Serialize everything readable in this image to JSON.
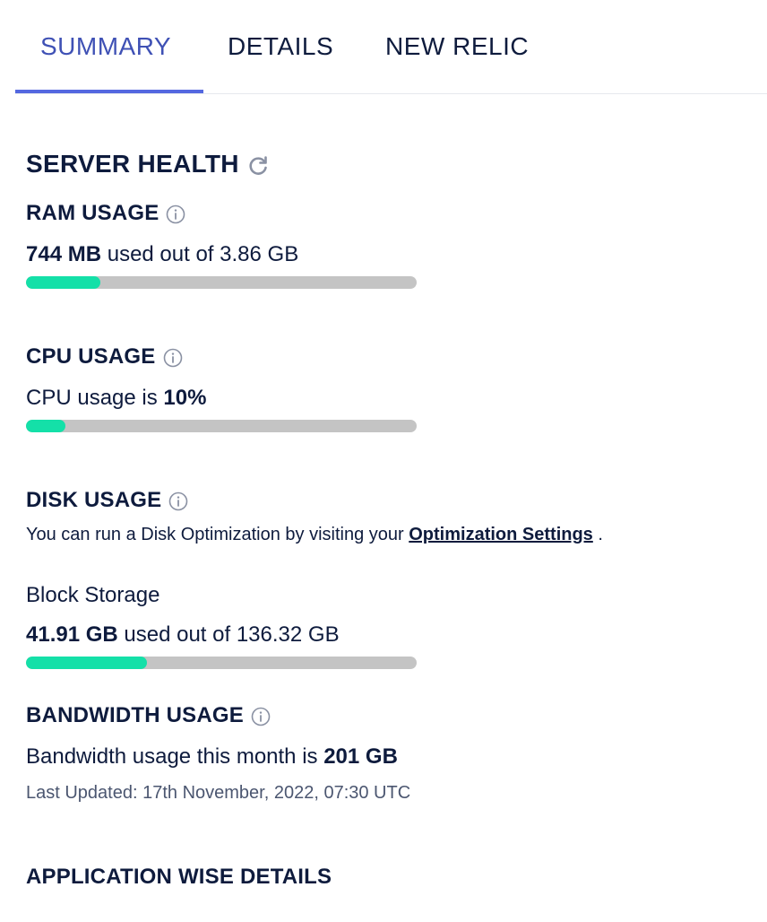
{
  "tabs": [
    {
      "label": "SUMMARY",
      "active": true
    },
    {
      "label": "DETAILS",
      "active": false
    },
    {
      "label": "NEW RELIC",
      "active": false
    }
  ],
  "server_health": {
    "title": "SERVER HEALTH",
    "refresh_icon": "refresh-icon"
  },
  "ram": {
    "title": "RAM USAGE",
    "used": "744 MB",
    "suffix": " used out of 3.86 GB",
    "fraction": 0.19
  },
  "cpu": {
    "title": "CPU USAGE",
    "prefix": "CPU usage is ",
    "value": "10%",
    "fraction": 0.1
  },
  "disk": {
    "title": "DISK USAGE",
    "note_prefix": "You can run a Disk Optimization by visiting your ",
    "note_link": "Optimization Settings",
    "note_suffix": " .",
    "storage_label": "Block Storage",
    "used": "41.91 GB",
    "suffix": " used out of 136.32 GB",
    "fraction": 0.31
  },
  "bandwidth": {
    "title": "BANDWIDTH USAGE",
    "prefix": "Bandwidth usage this month is ",
    "value": "201 GB",
    "updated": "Last Updated: 17th November, 2022, 07:30 UTC"
  },
  "app_details": {
    "title": "APPLICATION WISE DETAILS"
  },
  "colors": {
    "accent": "#5468e0",
    "active_tab": "#3f51b5",
    "bar_fill": "#14e0a8",
    "bar_track": "#c4c4c4",
    "text": "#0e1b3d"
  }
}
